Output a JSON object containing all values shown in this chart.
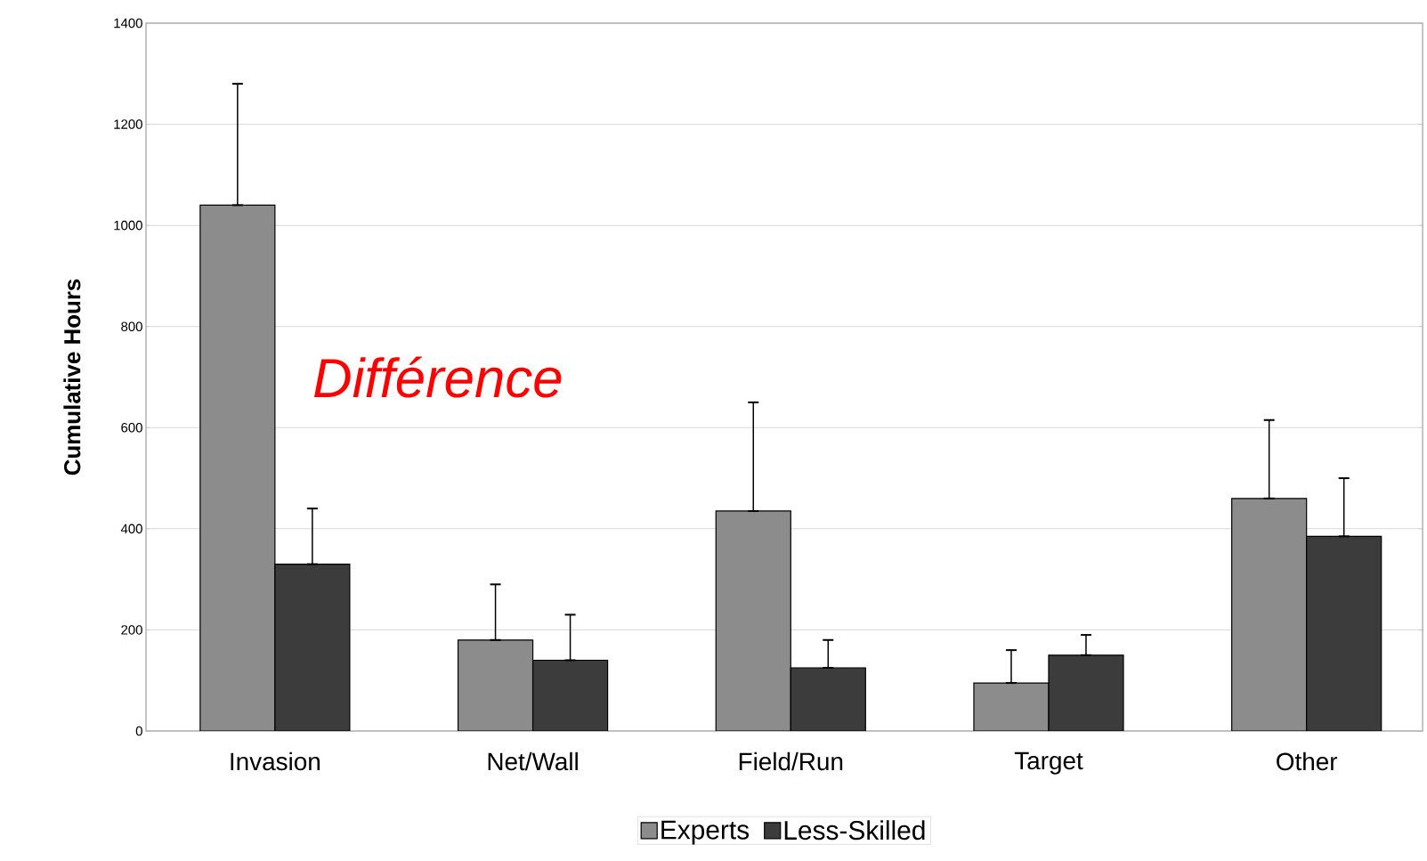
{
  "chart_data": {
    "type": "bar",
    "ylabel": "Cumulative Hours",
    "categories": [
      "Invasion",
      "Net/Wall",
      "Field/Run",
      "Target",
      "Other"
    ],
    "series": [
      {
        "name": "Experts",
        "color": "#8c8c8c",
        "values": [
          1040,
          180,
          435,
          95,
          460
        ],
        "errors": [
          [
            1040,
            1280
          ],
          [
            180,
            290
          ],
          [
            435,
            650
          ],
          [
            95,
            160
          ],
          [
            460,
            615
          ]
        ]
      },
      {
        "name": "Less-Skilled",
        "color": "#3c3c3c",
        "values": [
          330,
          140,
          125,
          150,
          385
        ],
        "errors": [
          [
            330,
            440
          ],
          [
            140,
            230
          ],
          [
            125,
            180
          ],
          [
            150,
            190
          ],
          [
            385,
            500
          ]
        ]
      }
    ],
    "ylim": [
      0,
      1400
    ],
    "yticks": [
      0,
      200,
      400,
      600,
      800,
      1000,
      1200,
      1400
    ],
    "grid": "y",
    "legend": "bottom",
    "annotations": [
      "Différence"
    ]
  }
}
